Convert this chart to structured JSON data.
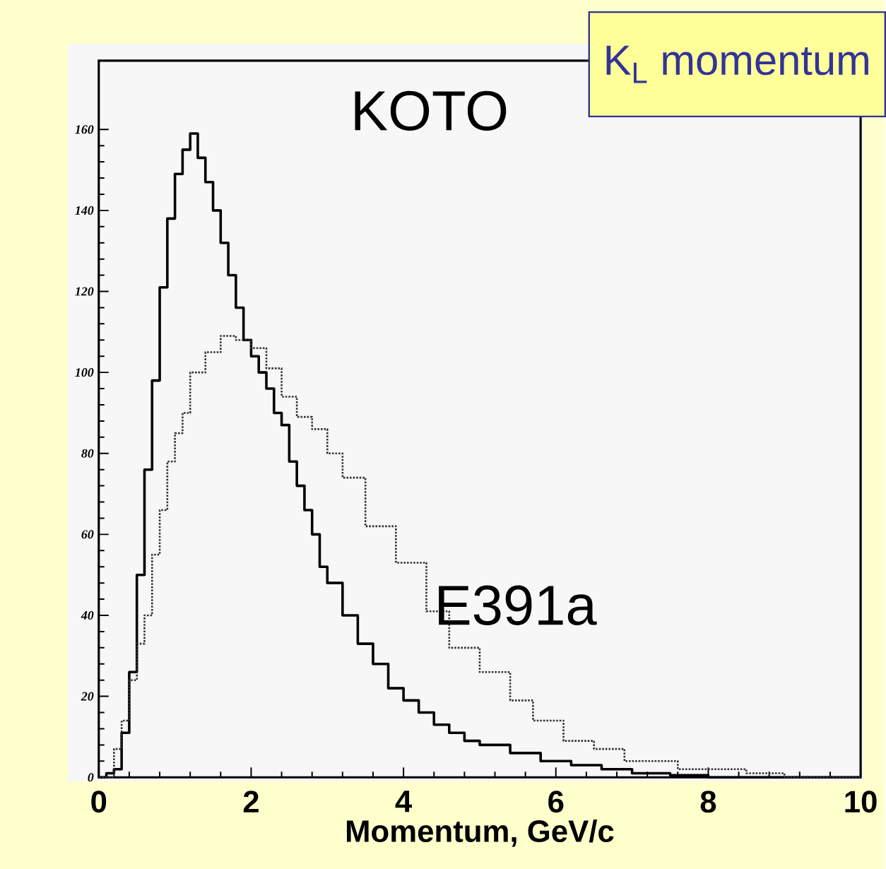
{
  "chart_data": {
    "type": "step",
    "title": "K$_{L}$ momentum",
    "xlabel": "Momentum, GeV/c",
    "xlim": [
      0,
      10
    ],
    "xticks": [
      0,
      2,
      4,
      6,
      8,
      10
    ],
    "ylim": [
      0,
      177
    ],
    "yticks": [
      0,
      20,
      40,
      60,
      80,
      100,
      120,
      140,
      160
    ],
    "grid": false,
    "marker": "none",
    "series": [
      {
        "name": "KOTO",
        "color": "#000000",
        "line_style": "solid",
        "x": [
          0,
          0.1,
          0.2,
          0.3,
          0.4,
          0.5,
          0.6,
          0.7,
          0.8,
          0.9,
          1.0,
          1.1,
          1.2,
          1.3,
          1.4,
          1.5,
          1.6,
          1.7,
          1.8,
          1.9,
          2.0,
          2.1,
          2.2,
          2.3,
          2.4,
          2.5,
          2.6,
          2.7,
          2.8,
          2.9,
          3.0,
          3.2,
          3.4,
          3.6,
          3.8,
          4.0,
          4.2,
          4.4,
          4.6,
          4.8,
          5.0,
          5.4,
          5.8,
          6.2,
          6.6,
          7.0,
          7.5,
          8.0,
          10.0
        ],
        "values": [
          0,
          1,
          2,
          11,
          26,
          50,
          76,
          98,
          121,
          138,
          149,
          155,
          159,
          153,
          147,
          140,
          132,
          124,
          116,
          108,
          104,
          100,
          96,
          90,
          87,
          78,
          72,
          66,
          60,
          52,
          48,
          40,
          33,
          28,
          22,
          19,
          16,
          13,
          11,
          9,
          8,
          6,
          4,
          3,
          2,
          1,
          0.5,
          0,
          0
        ]
      },
      {
        "name": "E391a",
        "color": "#333333",
        "line_style": "dotted",
        "x": [
          0,
          0.2,
          0.3,
          0.4,
          0.5,
          0.6,
          0.7,
          0.8,
          0.9,
          1.0,
          1.1,
          1.2,
          1.4,
          1.6,
          1.8,
          2.0,
          2.2,
          2.4,
          2.6,
          2.8,
          3.0,
          3.2,
          3.5,
          3.9,
          4.3,
          4.6,
          5.0,
          5.4,
          5.7,
          6.1,
          6.5,
          6.9,
          7.6,
          8.5,
          9.0,
          10.0
        ],
        "values": [
          0,
          7,
          14,
          24,
          33,
          40,
          55,
          66,
          78,
          85,
          90,
          100,
          105,
          109,
          108,
          106,
          101,
          94,
          89,
          86,
          80,
          74,
          62,
          53,
          41,
          32,
          26,
          19,
          14,
          9,
          7,
          4,
          2,
          1,
          0,
          0
        ]
      }
    ]
  }
}
